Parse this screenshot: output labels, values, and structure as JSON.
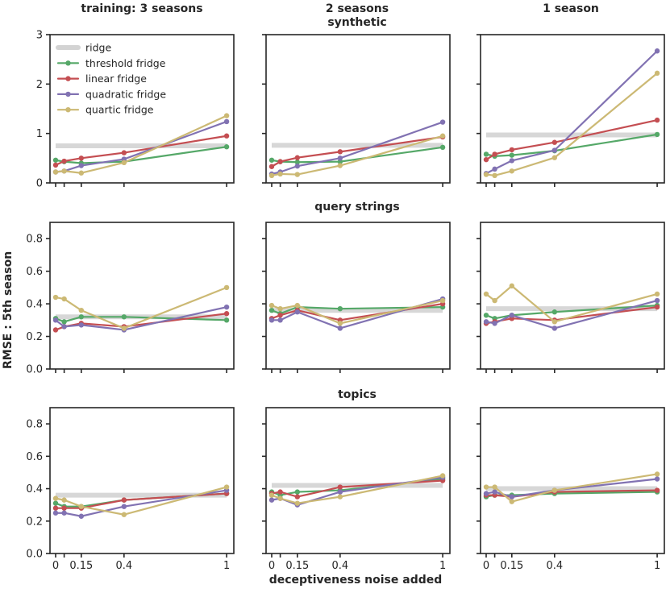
{
  "colors": {
    "background": "#ffffff",
    "spine": "#262626",
    "text": "#262626",
    "ridge": "#d3d3d3"
  },
  "legend": {
    "entries": [
      {
        "label": "ridge",
        "color": "#d3d3d3",
        "has_marker": false
      },
      {
        "label": "threshold fridge",
        "color": "#55a868",
        "has_marker": true
      },
      {
        "label": "linear fridge",
        "color": "#c44e52",
        "has_marker": true
      },
      {
        "label": "quadratic fridge",
        "color": "#8172b2",
        "has_marker": true
      },
      {
        "label": "quartic fridge",
        "color": "#ccb974",
        "has_marker": true
      }
    ]
  },
  "chart_data": {
    "type": "line",
    "xlabel": "deceptiveness noise added",
    "ylabel": "RMSE : 5th season",
    "col_titles": [
      "training: 3 seasons",
      "2 seasons",
      "1 season"
    ],
    "row_titles": [
      "synthetic",
      "query strings",
      "topics"
    ],
    "x": [
      0,
      0.05,
      0.15,
      0.4,
      1
    ],
    "x_tick_labels": [
      "0",
      "",
      "0.15",
      "0.4",
      "1"
    ],
    "xlim": [
      -0.033,
      1.042
    ],
    "grid": false,
    "legend_position": "upper-left of first subplot",
    "series_colors": {
      "ridge": "#d3d3d3",
      "threshold fridge": "#55a868",
      "linear fridge": "#c44e52",
      "quadratic fridge": "#8172b2",
      "quartic fridge": "#ccb974"
    },
    "plots": [
      {
        "row": 0,
        "col": 0,
        "facet_col": "training: 3 seasons",
        "facet_row": "synthetic",
        "ylim": [
          0,
          3
        ],
        "yticks": [
          0,
          1,
          2,
          3
        ],
        "ytick_labels": [
          "0",
          "1",
          "2",
          "3"
        ],
        "ridge": 0.75,
        "series": [
          {
            "name": "threshold fridge",
            "values": [
              0.46,
              0.43,
              0.4,
              0.43,
              0.73
            ]
          },
          {
            "name": "linear fridge",
            "values": [
              0.36,
              0.44,
              0.5,
              0.61,
              0.95
            ]
          },
          {
            "name": "quadratic fridge",
            "values": [
              0.22,
              0.24,
              0.35,
              0.48,
              1.24
            ]
          },
          {
            "name": "quartic fridge",
            "values": [
              0.22,
              0.24,
              0.2,
              0.41,
              1.36
            ]
          }
        ]
      },
      {
        "row": 0,
        "col": 1,
        "facet_col": "2 seasons",
        "facet_row": "synthetic",
        "ylim": [
          0,
          3
        ],
        "yticks": [
          0,
          1,
          2,
          3
        ],
        "ytick_labels": [
          "0",
          "1",
          "2",
          "3"
        ],
        "ridge": 0.76,
        "series": [
          {
            "name": "threshold fridge",
            "values": [
              0.46,
              0.43,
              0.42,
              0.43,
              0.72
            ]
          },
          {
            "name": "linear fridge",
            "values": [
              0.33,
              0.43,
              0.51,
              0.63,
              0.93
            ]
          },
          {
            "name": "quadratic fridge",
            "values": [
              0.18,
              0.22,
              0.34,
              0.5,
              1.23
            ]
          },
          {
            "name": "quartic fridge",
            "values": [
              0.15,
              0.18,
              0.17,
              0.35,
              0.95
            ]
          }
        ]
      },
      {
        "row": 0,
        "col": 2,
        "facet_col": "1 season",
        "facet_row": "synthetic",
        "ylim": [
          0,
          3
        ],
        "yticks": [
          0,
          1,
          2,
          3
        ],
        "ytick_labels": [
          "0",
          "1",
          "2",
          "3"
        ],
        "ridge": 0.97,
        "series": [
          {
            "name": "threshold fridge",
            "values": [
              0.58,
              0.54,
              0.56,
              0.65,
              0.98
            ]
          },
          {
            "name": "linear fridge",
            "values": [
              0.47,
              0.58,
              0.67,
              0.82,
              1.27
            ]
          },
          {
            "name": "quadratic fridge",
            "values": [
              0.19,
              0.28,
              0.45,
              0.66,
              2.67
            ]
          },
          {
            "name": "quartic fridge",
            "values": [
              0.17,
              0.15,
              0.24,
              0.51,
              2.22
            ]
          }
        ]
      },
      {
        "row": 1,
        "col": 0,
        "facet_col": "training: 3 seasons",
        "facet_row": "query strings",
        "ylim": [
          0,
          0.9
        ],
        "yticks": [
          0,
          0.2,
          0.4,
          0.6,
          0.8
        ],
        "ytick_labels": [
          "0.0",
          "0.2",
          "0.4",
          "0.6",
          "0.8"
        ],
        "ridge": 0.32,
        "series": [
          {
            "name": "threshold fridge",
            "values": [
              0.31,
              0.29,
              0.32,
              0.32,
              0.3
            ]
          },
          {
            "name": "linear fridge",
            "values": [
              0.24,
              0.26,
              0.28,
              0.26,
              0.34
            ]
          },
          {
            "name": "quadratic fridge",
            "values": [
              0.3,
              0.26,
              0.27,
              0.24,
              0.38
            ]
          },
          {
            "name": "quartic fridge",
            "values": [
              0.44,
              0.43,
              0.36,
              0.25,
              0.5
            ]
          }
        ]
      },
      {
        "row": 1,
        "col": 1,
        "facet_col": "2 seasons",
        "facet_row": "query strings",
        "ylim": [
          0,
          0.9
        ],
        "yticks": [
          0,
          0.2,
          0.4,
          0.6,
          0.8
        ],
        "ytick_labels": [
          "0.0",
          "0.2",
          "0.4",
          "0.6",
          "0.8"
        ],
        "ridge": 0.36,
        "series": [
          {
            "name": "threshold fridge",
            "values": [
              0.36,
              0.34,
              0.38,
              0.37,
              0.38
            ]
          },
          {
            "name": "linear fridge",
            "values": [
              0.31,
              0.33,
              0.36,
              0.3,
              0.4
            ]
          },
          {
            "name": "quadratic fridge",
            "values": [
              0.3,
              0.3,
              0.35,
              0.25,
              0.43
            ]
          },
          {
            "name": "quartic fridge",
            "values": [
              0.39,
              0.37,
              0.39,
              0.28,
              0.42
            ]
          }
        ]
      },
      {
        "row": 1,
        "col": 2,
        "facet_col": "1 season",
        "facet_row": "query strings",
        "ylim": [
          0,
          0.9
        ],
        "yticks": [
          0,
          0.2,
          0.4,
          0.6,
          0.8
        ],
        "ytick_labels": [
          "0.0",
          "0.2",
          "0.4",
          "0.6",
          "0.8"
        ],
        "ridge": 0.37,
        "series": [
          {
            "name": "threshold fridge",
            "values": [
              0.33,
              0.31,
              0.33,
              0.35,
              0.39
            ]
          },
          {
            "name": "linear fridge",
            "values": [
              0.28,
              0.29,
              0.31,
              0.3,
              0.38
            ]
          },
          {
            "name": "quadratic fridge",
            "values": [
              0.29,
              0.28,
              0.33,
              0.25,
              0.42
            ]
          },
          {
            "name": "quartic fridge",
            "values": [
              0.46,
              0.42,
              0.51,
              0.29,
              0.46
            ]
          }
        ]
      },
      {
        "row": 2,
        "col": 0,
        "facet_col": "training: 3 seasons",
        "facet_row": "topics",
        "ylim": [
          0,
          0.9
        ],
        "yticks": [
          0,
          0.2,
          0.4,
          0.6,
          0.8
        ],
        "ytick_labels": [
          "0.0",
          "0.2",
          "0.4",
          "0.6",
          "0.8"
        ],
        "ridge": 0.36,
        "series": [
          {
            "name": "threshold fridge",
            "values": [
              0.31,
              0.29,
              0.29,
              0.33,
              0.37
            ]
          },
          {
            "name": "linear fridge",
            "values": [
              0.28,
              0.28,
              0.28,
              0.33,
              0.37
            ]
          },
          {
            "name": "quadratic fridge",
            "values": [
              0.25,
              0.25,
              0.23,
              0.29,
              0.39
            ]
          },
          {
            "name": "quartic fridge",
            "values": [
              0.34,
              0.33,
              0.29,
              0.24,
              0.41
            ]
          }
        ]
      },
      {
        "row": 2,
        "col": 1,
        "facet_col": "2 seasons",
        "facet_row": "topics",
        "ylim": [
          0,
          0.9
        ],
        "yticks": [
          0,
          0.2,
          0.4,
          0.6,
          0.8
        ],
        "ytick_labels": [
          "0.0",
          "0.2",
          "0.4",
          "0.6",
          "0.8"
        ],
        "ridge": 0.42,
        "series": [
          {
            "name": "threshold fridge",
            "values": [
              0.38,
              0.36,
              0.38,
              0.39,
              0.46
            ]
          },
          {
            "name": "linear fridge",
            "values": [
              0.37,
              0.38,
              0.35,
              0.41,
              0.45
            ]
          },
          {
            "name": "quadratic fridge",
            "values": [
              0.33,
              0.34,
              0.3,
              0.38,
              0.47
            ]
          },
          {
            "name": "quartic fridge",
            "values": [
              0.36,
              0.34,
              0.31,
              0.35,
              0.48
            ]
          }
        ]
      },
      {
        "row": 2,
        "col": 2,
        "facet_col": "1 season",
        "facet_row": "topics",
        "ylim": [
          0,
          0.9
        ],
        "yticks": [
          0,
          0.2,
          0.4,
          0.6,
          0.8
        ],
        "ytick_labels": [
          "0.0",
          "0.2",
          "0.4",
          "0.6",
          "0.8"
        ],
        "ridge": 0.4,
        "series": [
          {
            "name": "threshold fridge",
            "values": [
              0.35,
              0.36,
              0.36,
              0.37,
              0.38
            ]
          },
          {
            "name": "linear fridge",
            "values": [
              0.36,
              0.36,
              0.35,
              0.38,
              0.39
            ]
          },
          {
            "name": "quadratic fridge",
            "values": [
              0.37,
              0.38,
              0.35,
              0.39,
              0.46
            ]
          },
          {
            "name": "quartic fridge",
            "values": [
              0.41,
              0.41,
              0.32,
              0.39,
              0.49
            ]
          }
        ]
      }
    ]
  }
}
